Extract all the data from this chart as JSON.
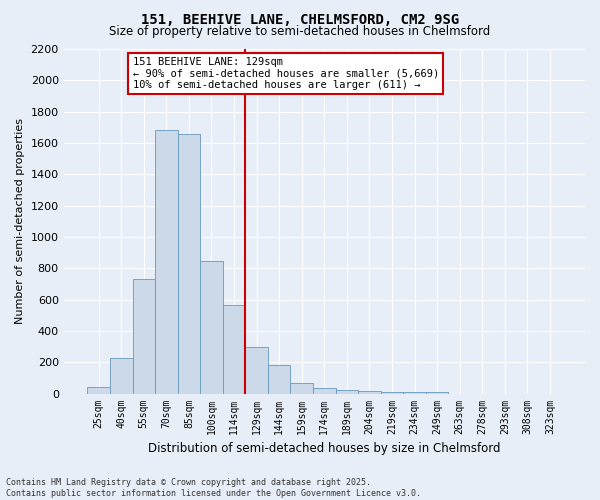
{
  "title": "151, BEEHIVE LANE, CHELMSFORD, CM2 9SG",
  "subtitle": "Size of property relative to semi-detached houses in Chelmsford",
  "xlabel": "Distribution of semi-detached houses by size in Chelmsford",
  "ylabel": "Number of semi-detached properties",
  "bar_color": "#ccd9e8",
  "bar_edge_color": "#6699bb",
  "background_color": "#e8eef8",
  "fig_background_color": "#e8eef8",
  "grid_color": "#ffffff",
  "categories": [
    "25sqm",
    "40sqm",
    "55sqm",
    "70sqm",
    "85sqm",
    "100sqm",
    "114sqm",
    "129sqm",
    "144sqm",
    "159sqm",
    "174sqm",
    "189sqm",
    "204sqm",
    "219sqm",
    "234sqm",
    "249sqm",
    "263sqm",
    "278sqm",
    "293sqm",
    "308sqm",
    "323sqm"
  ],
  "values": [
    40,
    225,
    730,
    1680,
    1660,
    845,
    565,
    295,
    180,
    65,
    38,
    25,
    15,
    10,
    8,
    10,
    0,
    0,
    0,
    0,
    0
  ],
  "property_line_index": 7,
  "property_label": "151 BEEHIVE LANE: 129sqm",
  "annotation_left": "← 90% of semi-detached houses are smaller (5,669)",
  "annotation_right": "10% of semi-detached houses are larger (611) →",
  "ylim": [
    0,
    2200
  ],
  "yticks": [
    0,
    200,
    400,
    600,
    800,
    1000,
    1200,
    1400,
    1600,
    1800,
    2000,
    2200
  ],
  "footer_line1": "Contains HM Land Registry data © Crown copyright and database right 2025.",
  "footer_line2": "Contains public sector information licensed under the Open Government Licence v3.0.",
  "red_line_color": "#cc0000",
  "annotation_box_facecolor": "#ffffff",
  "annotation_box_edgecolor": "#cc0000"
}
